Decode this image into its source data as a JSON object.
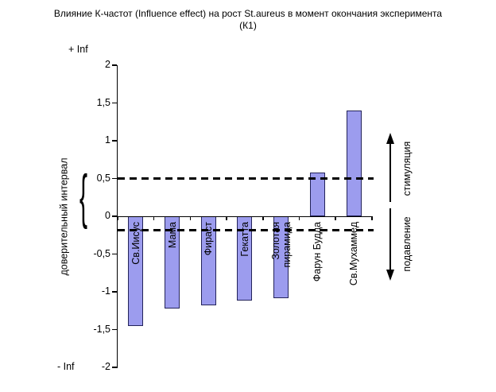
{
  "title": {
    "line1": "Влияние К-частот (Influence effect) на рост St.aureus в момент окончания эксперимента",
    "line2": "(К1)"
  },
  "y_axis": {
    "label": "доверительный интервал",
    "plus_inf": "+ Inf",
    "minus_inf": "- Inf",
    "tick_labels": [
      "2",
      "1,5",
      "1",
      "0,5",
      "0",
      "-0,5",
      "-1",
      "-1,5",
      "-2"
    ]
  },
  "confidence_brace": "{",
  "right_annotations": {
    "stimulation": "стимуляция",
    "suppression": "подавление"
  },
  "chart_data": {
    "type": "bar",
    "title": "Влияние К-частот (Influence effect) на рост St.aureus в момент окончания эксперимента (К1)",
    "categories": [
      "Св.Иисус",
      "Мама",
      "Фираст",
      "Гекатта",
      "Золотая\nпирамида",
      "Фарун Будда",
      "Св.Мухаммед"
    ],
    "values": [
      -1.45,
      -1.22,
      -1.18,
      -1.12,
      -1.08,
      0.58,
      1.4
    ],
    "ylabel": "доверительный интервал",
    "ylim": [
      -2,
      2
    ],
    "ytick_step": 0.5,
    "reference_lines": [
      0.5,
      -0.18
    ],
    "grid": false,
    "legend": false,
    "bar_color": "#9c9cee",
    "bar_border_color": "#23235a",
    "annotation_up": "стимуляция",
    "annotation_down": "подавление"
  }
}
